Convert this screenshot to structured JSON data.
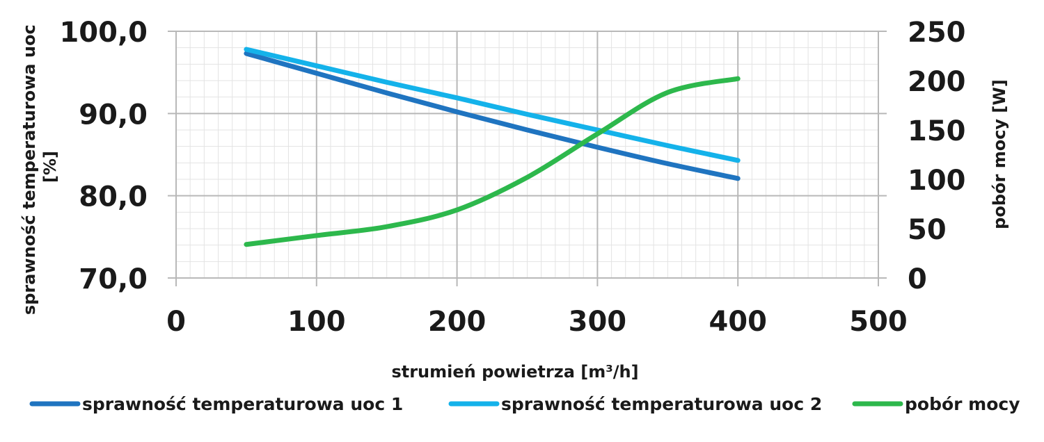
{
  "chart_data": {
    "type": "line",
    "xlabel": "strumień powietrza [m³/h]",
    "ylabel_left": "sprawność temperaturowa uoc [%]",
    "ylabel_left_lines": [
      "sprawność temperaturowa uoc",
      "[%]"
    ],
    "ylabel_right": "pobór mocy [W]",
    "xlim": [
      0,
      500
    ],
    "ylim_left": [
      70,
      100
    ],
    "ylim_right": [
      0,
      250
    ],
    "x_ticks": [
      "0",
      "100",
      "200",
      "300",
      "400",
      "500"
    ],
    "y_left_ticks": [
      "70,0",
      "80,0",
      "90,0",
      "100,0"
    ],
    "y_right_ticks": [
      "0",
      "50",
      "100",
      "150",
      "200",
      "250"
    ],
    "grid": true,
    "minor_grid": true,
    "legend_position": "bottom",
    "series": [
      {
        "name": "sprawność temperaturowa uoc 1",
        "axis": "left",
        "color": "#1f74c0",
        "x": [
          50,
          100,
          150,
          200,
          250,
          300,
          350,
          400
        ],
        "y": [
          97.3,
          94.9,
          92.5,
          90.2,
          88.0,
          85.9,
          83.9,
          82.1
        ]
      },
      {
        "name": "sprawność temperaturowa uoc 2",
        "axis": "left",
        "color": "#14b2ea",
        "x": [
          50,
          100,
          150,
          200,
          250,
          300,
          350,
          400
        ],
        "y": [
          97.8,
          95.8,
          93.8,
          91.9,
          89.9,
          88.0,
          86.1,
          84.3
        ]
      },
      {
        "name": "pobór mocy",
        "axis": "right",
        "color": "#2db84c",
        "x": [
          50,
          100,
          150,
          200,
          250,
          300,
          350,
          400
        ],
        "y": [
          34,
          43,
          52,
          69,
          102,
          146,
          188,
          202
        ]
      }
    ]
  }
}
